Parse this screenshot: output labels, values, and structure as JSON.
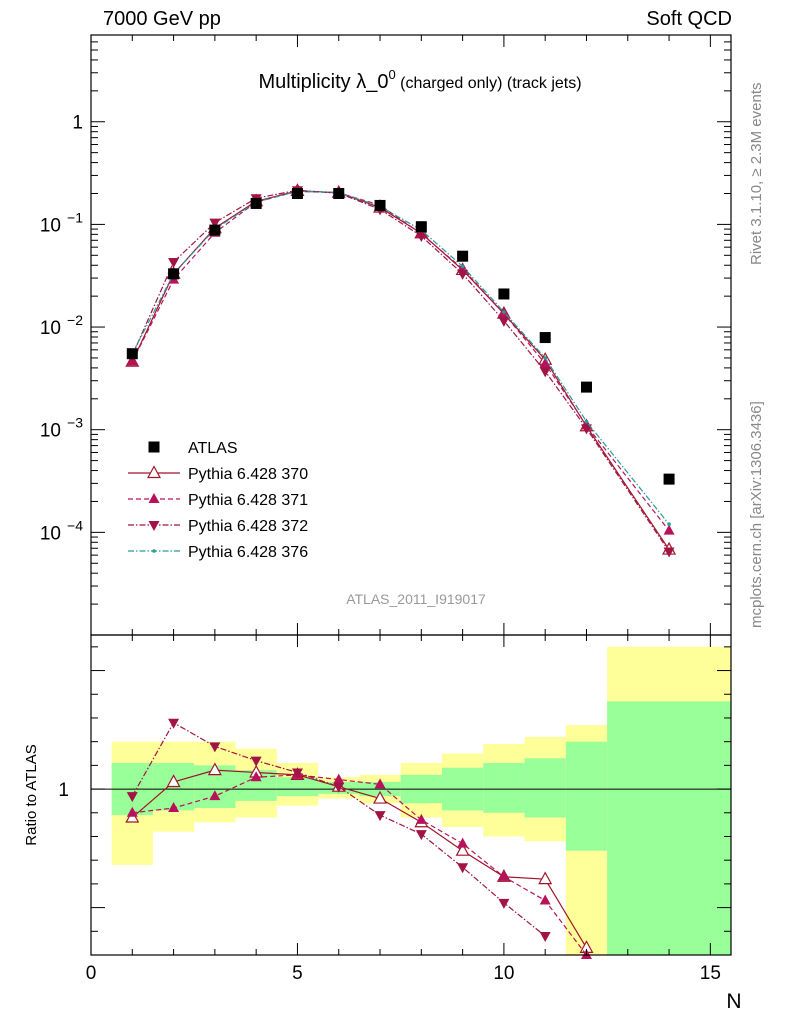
{
  "header": {
    "left": "7000 GeV pp",
    "right": "Soft QCD"
  },
  "side_labels": {
    "rivet": "Rivet 3.1.10, ≥ 2.3M events",
    "source": "mcplots.cern.ch [arXiv:1306.3436]"
  },
  "chart_data": [
    {
      "type": "scatter",
      "panel": "main",
      "title_main": "Multiplicity λ_0",
      "title_sup": "0",
      "title_tail": " (charged only) (track jets)",
      "watermark": "ATLAS_2011_I919017",
      "xlim": [
        0,
        15.5
      ],
      "ylim": [
        1e-05,
        7
      ],
      "yscale": "log",
      "xticks": [
        0,
        5,
        10,
        15
      ],
      "yticks": [
        {
          "v": 1,
          "base": "1",
          "exp": ""
        },
        {
          "v": 0.1,
          "base": "10",
          "exp": "−1"
        },
        {
          "v": 0.01,
          "base": "10",
          "exp": "−2"
        },
        {
          "v": 0.001,
          "base": "10",
          "exp": "−3"
        },
        {
          "v": 0.0001,
          "base": "10",
          "exp": "−4"
        }
      ],
      "legend_position": "lower-left",
      "series": [
        {
          "name": "ATLAS",
          "color": "#000000",
          "marker": "square",
          "dash": "",
          "x": [
            1,
            2,
            3,
            4,
            5,
            6,
            7,
            8,
            9,
            10,
            11,
            12,
            14
          ],
          "y": [
            0.0055,
            0.033,
            0.088,
            0.16,
            0.2,
            0.2,
            0.153,
            0.095,
            0.049,
            0.021,
            0.0079,
            0.0026,
            0.00033
          ]
        },
        {
          "name": "Pythia 6.428 370",
          "color": "#a0152b",
          "marker": "triangle-open",
          "dash": "",
          "x": [
            1,
            2,
            3,
            4,
            5,
            6,
            7,
            8,
            9,
            10,
            11,
            12,
            14
          ],
          "y": [
            0.0046,
            0.033,
            0.092,
            0.168,
            0.212,
            0.204,
            0.146,
            0.082,
            0.036,
            0.0135,
            0.0048,
            0.00108,
            6.8e-05
          ]
        },
        {
          "name": "Pythia 6.428 371",
          "color": "#b8135a",
          "marker": "triangle-up",
          "dash": "5,3",
          "x": [
            1,
            2,
            3,
            4,
            5,
            6,
            7,
            8,
            9,
            10,
            11,
            12,
            14
          ],
          "y": [
            0.0046,
            0.029,
            0.083,
            0.165,
            0.21,
            0.203,
            0.154,
            0.081,
            0.037,
            0.0135,
            0.0044,
            0.0011,
            0.000104
          ]
        },
        {
          "name": "Pythia 6.428 372",
          "color": "#a01545",
          "marker": "triangle-down",
          "dash": "6,2,1.5,2",
          "x": [
            1,
            2,
            3,
            4,
            5,
            6,
            7,
            8,
            9,
            10,
            11,
            12,
            14
          ],
          "y": [
            0.0053,
            0.043,
            0.104,
            0.18,
            0.215,
            0.202,
            0.14,
            0.077,
            0.033,
            0.0115,
            0.0037,
            0.00103,
            6.5e-05
          ]
        },
        {
          "name": "Pythia 6.428 376",
          "color": "#2a9b9b",
          "marker": "dot",
          "dash": "6,2,1.5,2",
          "x": [
            1,
            2,
            3,
            4,
            5,
            6,
            7,
            8,
            9,
            10,
            11,
            12,
            14
          ],
          "y": [
            0.0055,
            0.033,
            0.09,
            0.165,
            0.21,
            0.205,
            0.15,
            0.088,
            0.039,
            0.014,
            0.005,
            0.0012,
            0.00012
          ]
        }
      ]
    },
    {
      "type": "line",
      "panel": "ratio",
      "ylabel": "Ratio to ATLAS",
      "xlabel": "N",
      "xlim": [
        0,
        15.5
      ],
      "ylim": [
        0.3,
        1.65
      ],
      "yticks": [
        1
      ],
      "xticks": [
        0,
        5,
        10,
        15
      ],
      "bands": [
        {
          "x0": 0.5,
          "x1": 1.5,
          "inner": [
            0.89,
            1.11
          ],
          "outer": [
            0.68,
            1.2
          ]
        },
        {
          "x0": 1.5,
          "x1": 2.5,
          "inner": [
            0.91,
            1.11
          ],
          "outer": [
            0.82,
            1.2
          ]
        },
        {
          "x0": 2.5,
          "x1": 3.5,
          "inner": [
            0.92,
            1.1
          ],
          "outer": [
            0.86,
            1.2
          ]
        },
        {
          "x0": 3.5,
          "x1": 4.5,
          "inner": [
            0.95,
            1.08
          ],
          "outer": [
            0.88,
            1.17
          ]
        },
        {
          "x0": 4.5,
          "x1": 5.5,
          "inner": [
            0.97,
            1.05
          ],
          "outer": [
            0.93,
            1.11
          ]
        },
        {
          "x0": 5.5,
          "x1": 6.5,
          "inner": [
            0.98,
            1.03
          ],
          "outer": [
            0.96,
            1.05
          ]
        },
        {
          "x0": 6.5,
          "x1": 7.5,
          "inner": [
            0.97,
            1.03
          ],
          "outer": [
            0.94,
            1.06
          ]
        },
        {
          "x0": 7.5,
          "x1": 8.5,
          "inner": [
            0.94,
            1.06
          ],
          "outer": [
            0.88,
            1.11
          ]
        },
        {
          "x0": 8.5,
          "x1": 9.5,
          "inner": [
            0.91,
            1.09
          ],
          "outer": [
            0.84,
            1.15
          ]
        },
        {
          "x0": 9.5,
          "x1": 10.5,
          "inner": [
            0.9,
            1.11
          ],
          "outer": [
            0.8,
            1.19
          ]
        },
        {
          "x0": 10.5,
          "x1": 11.5,
          "inner": [
            0.88,
            1.13
          ],
          "outer": [
            0.78,
            1.22
          ]
        },
        {
          "x0": 11.5,
          "x1": 12.5,
          "inner": [
            0.74,
            1.2
          ],
          "outer": [
            0.3,
            1.27
          ]
        },
        {
          "x0": 12.5,
          "x1": 15.5,
          "inner": [
            0.3,
            1.37
          ],
          "outer": [
            0.3,
            1.6
          ]
        }
      ],
      "series": [
        {
          "name": "Pythia 6.428 370",
          "color": "#a0152b",
          "marker": "triangle-open",
          "dash": "",
          "x": [
            1,
            2,
            3,
            4,
            5,
            6,
            7,
            8,
            9,
            10,
            11,
            12
          ],
          "y": [
            0.88,
            1.03,
            1.08,
            1.07,
            1.06,
            1.01,
            0.96,
            0.86,
            0.74,
            0.63,
            0.62,
            0.33
          ]
        },
        {
          "name": "Pythia 6.428 371",
          "color": "#b8135a",
          "marker": "triangle-up",
          "dash": "5,3",
          "x": [
            1,
            2,
            3,
            4,
            5,
            6,
            7,
            8,
            9,
            10,
            11,
            12
          ],
          "y": [
            0.9,
            0.92,
            0.97,
            1.05,
            1.06,
            1.04,
            1.02,
            0.87,
            0.77,
            0.63,
            0.53,
            0.3
          ]
        },
        {
          "name": "Pythia 6.428 372",
          "color": "#a01545",
          "marker": "triangle-down",
          "dash": "6,2,1.5,2",
          "x": [
            1,
            2,
            3,
            4,
            5,
            6,
            7,
            8,
            9,
            10,
            11
          ],
          "y": [
            0.97,
            1.28,
            1.18,
            1.12,
            1.07,
            1.01,
            0.89,
            0.81,
            0.67,
            0.52,
            0.38
          ]
        }
      ]
    }
  ],
  "colors": {
    "band_inner": "#99ff99",
    "band_outer": "#ffff99",
    "title_gray": "#999999"
  }
}
